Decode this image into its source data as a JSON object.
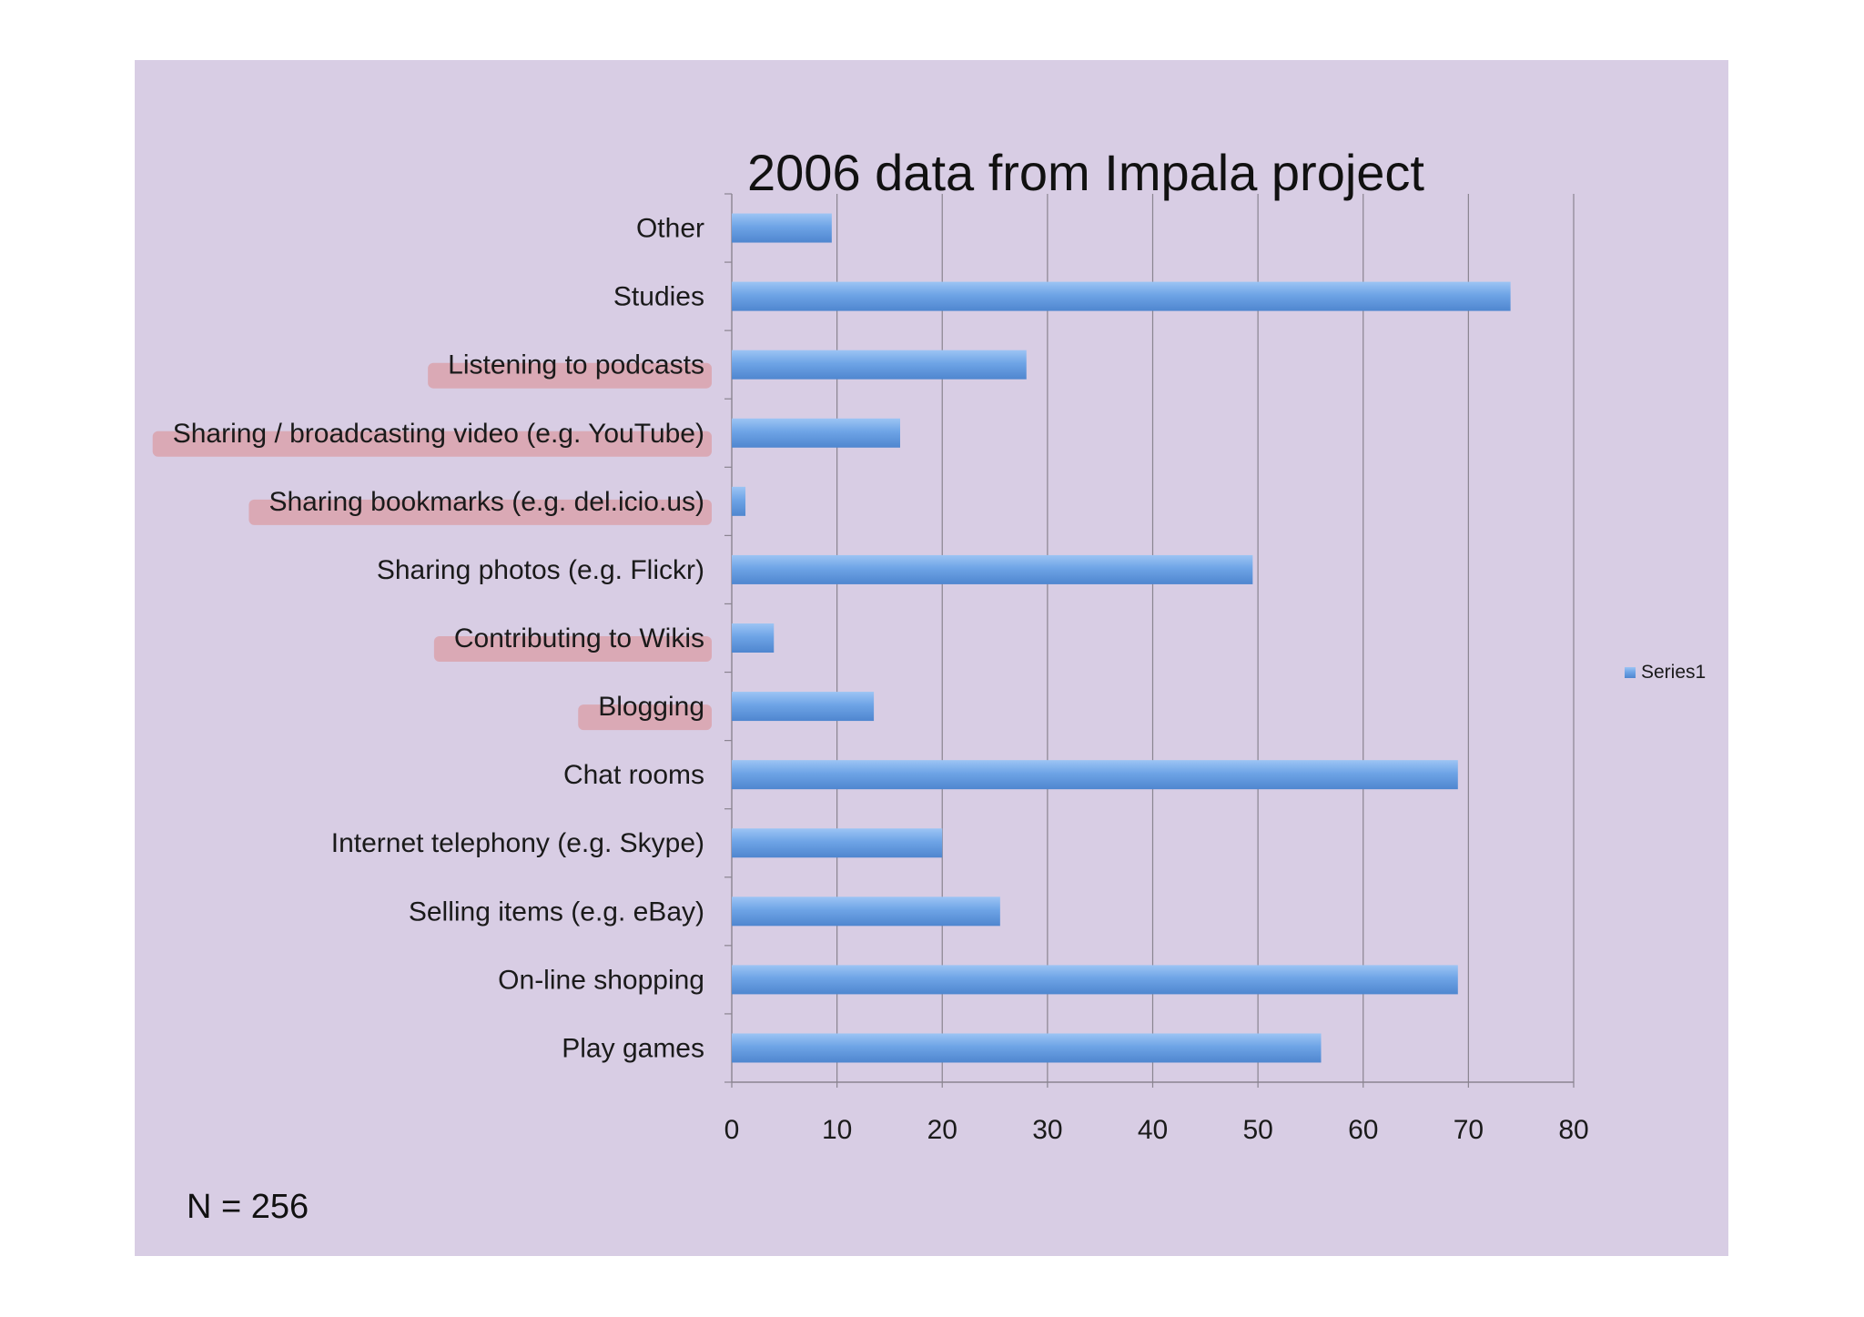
{
  "chart_data": {
    "type": "bar",
    "orientation": "horizontal",
    "title": "2006 data from Impala project",
    "categories": [
      "Play games",
      "On-line shopping",
      "Selling items (e.g. eBay)",
      "Internet telephony (e.g. Skype)",
      "Chat rooms",
      "Blogging",
      "Contributing to Wikis",
      "Sharing photos (e.g. Flickr)",
      "Sharing bookmarks (e.g. del.icio.us)",
      "Sharing / broadcasting video (e.g. YouTube)",
      "Listening to podcasts",
      "Studies",
      "Other"
    ],
    "series": [
      {
        "name": "Series1",
        "values": [
          56,
          69,
          25.5,
          20,
          69,
          13.5,
          4,
          49.5,
          1.3,
          16,
          28,
          74,
          9.5
        ]
      }
    ],
    "highlighted_categories": [
      "Blogging",
      "Contributing to Wikis",
      "Sharing bookmarks (e.g. del.icio.us)",
      "Sharing / broadcasting video (e.g. YouTube)",
      "Listening to podcasts"
    ],
    "xlim": [
      0,
      80
    ],
    "xticks": [
      "0",
      "10",
      "20",
      "30",
      "40",
      "50",
      "60",
      "70",
      "80"
    ],
    "grid": true,
    "legend": "right",
    "colors": {
      "bar": "#6ea4e6",
      "highlight": "#dba2ad",
      "background": "#d8cde4",
      "grid": "#8a8490"
    }
  },
  "note": "N = 256"
}
